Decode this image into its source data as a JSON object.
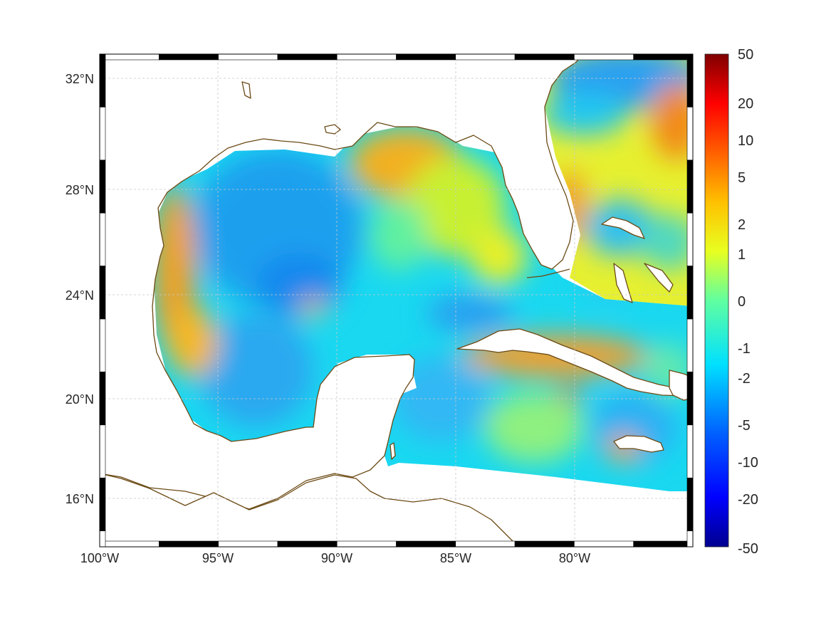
{
  "map": {
    "longitude_ticks": [
      "100°W",
      "95°W",
      "90°W",
      "85°W",
      "80°W"
    ],
    "latitude_ticks": [
      "32°N",
      "28°N",
      "24°N",
      "20°N",
      "16°N"
    ],
    "extent": {
      "lon_min": -100,
      "lon_max": -74.9,
      "lat_min": 14.3,
      "lat_max": 32.9
    },
    "grid": true,
    "coastline_color": "#6b4a14",
    "land_color": "#ffffff"
  },
  "colorbar": {
    "ticks": [
      "50",
      "20",
      "10",
      "5",
      "2",
      "1",
      "0",
      "-1",
      "-2",
      "-5",
      "-10",
      "-20",
      "-50"
    ],
    "colormap": "jet",
    "colors": [
      "#00008f",
      "#0000ff",
      "#0080ff",
      "#00ffff",
      "#80ff80",
      "#ffff00",
      "#ff8000",
      "#ff0000",
      "#800000"
    ]
  }
}
